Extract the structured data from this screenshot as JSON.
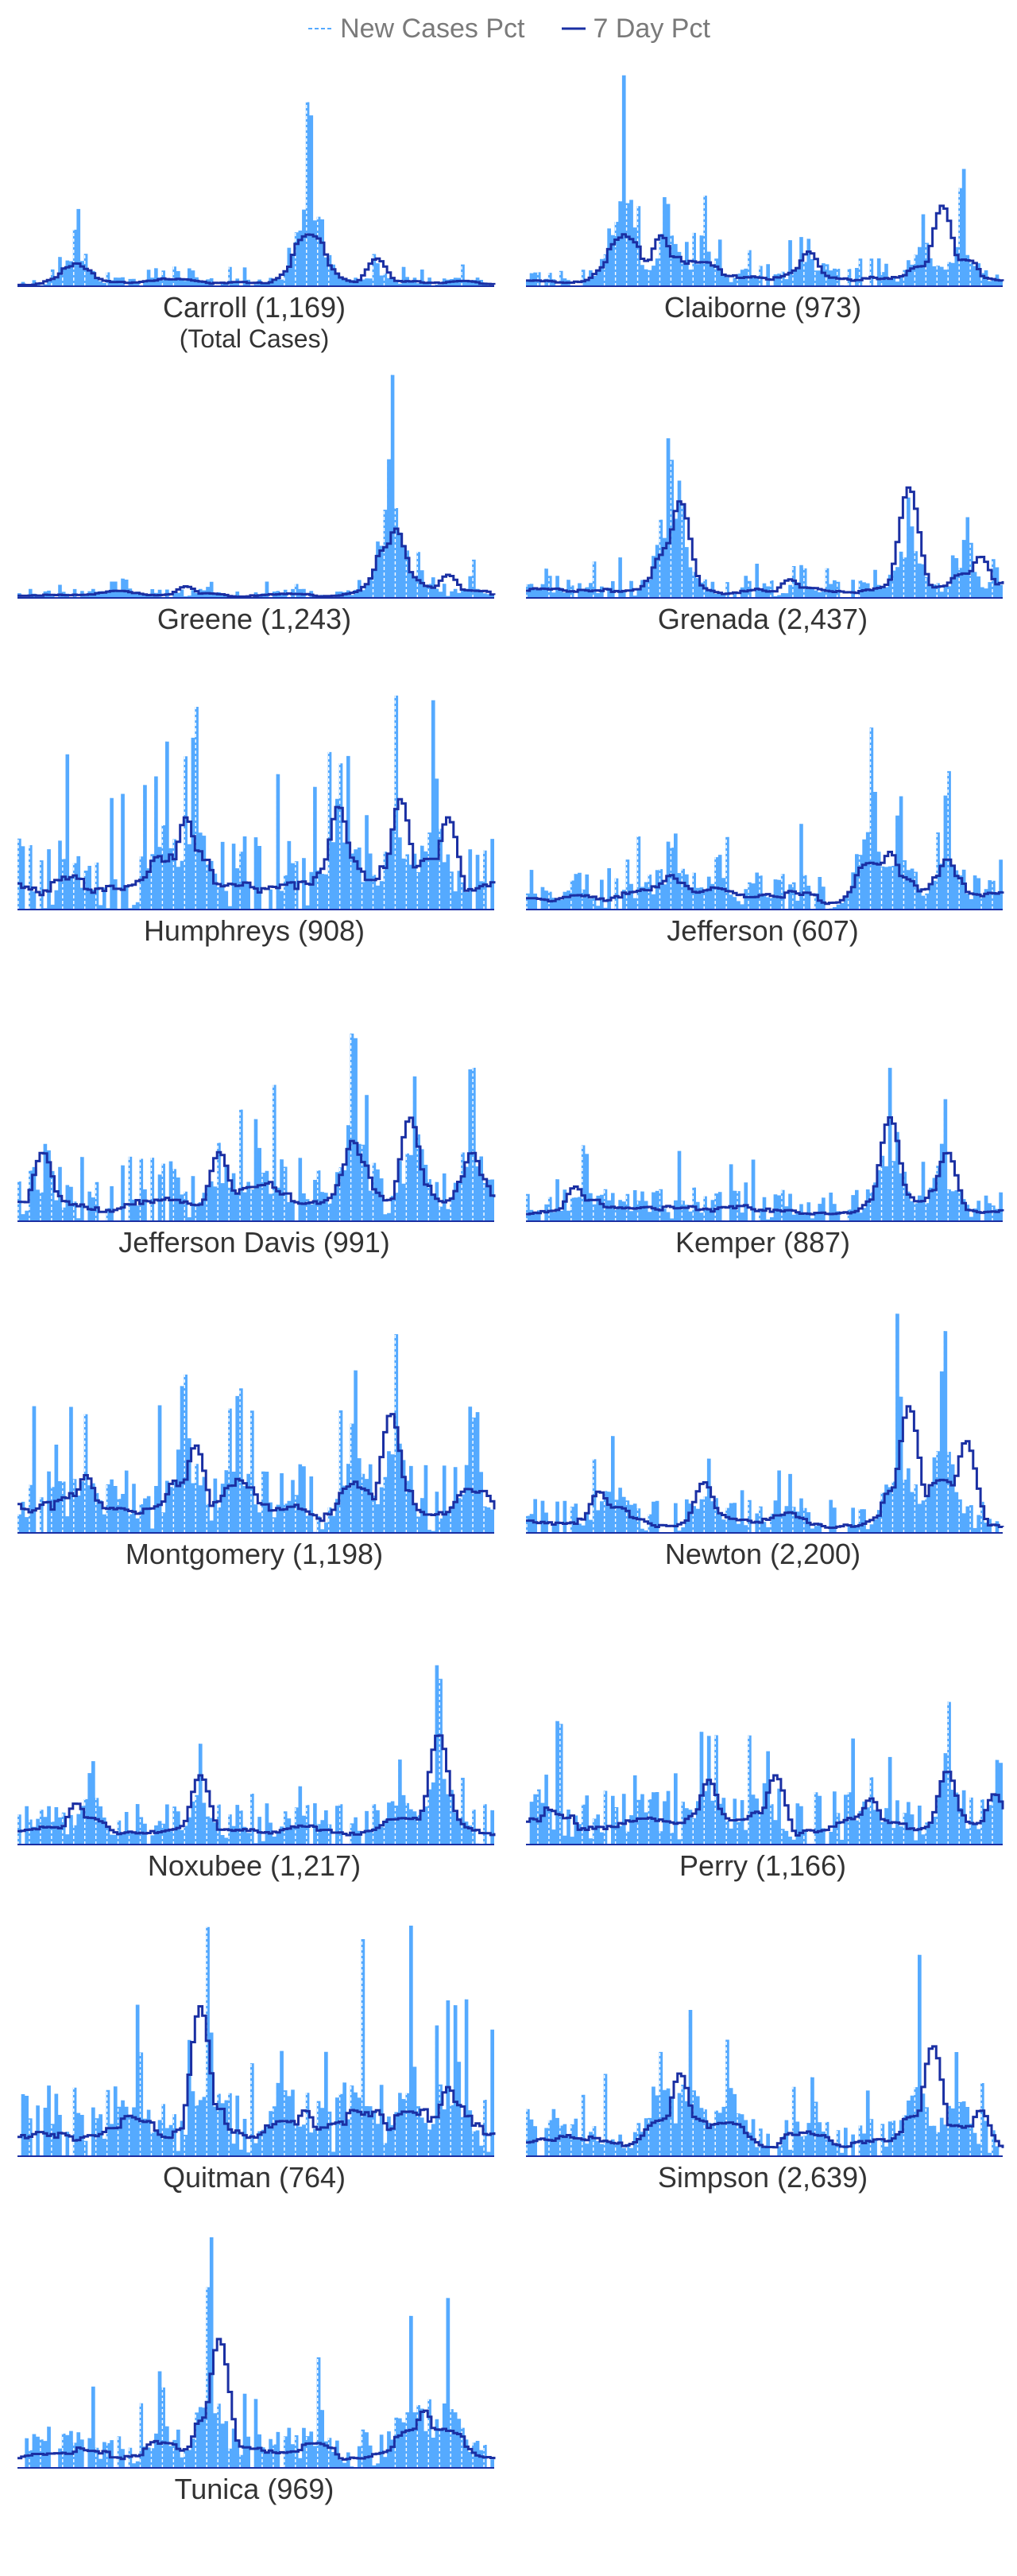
{
  "legend": {
    "new_cases_label": "New Cases Pct",
    "seven_day_label": "7 Day Pct"
  },
  "colors": {
    "area": "#55aaff",
    "new_cases_line": "#55aaff",
    "seven_day_line": "#1a2fa3",
    "title_text": "#333333",
    "legend_text": "#7a7a7a"
  },
  "chart_data": {
    "type": "area",
    "series_names": [
      "New Cases Pct",
      "7 Day Pct"
    ],
    "subtitle_first_panel": "(Total Cases)",
    "panels": [
      {
        "county": "Carroll",
        "total_cases": "1,169",
        "title": "Carroll (1,169)",
        "peaks": [
          [
            0.12,
            0.4
          ],
          [
            0.33,
            0.1
          ],
          [
            0.61,
            1.0
          ],
          [
            0.75,
            0.15
          ],
          [
            0.93,
            0.1
          ]
        ],
        "noise": 0.04,
        "seven_day": [
          [
            0.12,
            0.1
          ],
          [
            0.62,
            0.15
          ],
          [
            0.75,
            0.12
          ]
        ]
      },
      {
        "county": "Claiborne",
        "total_cases": "973",
        "title": "Claiborne (973)",
        "peaks": [
          [
            0.2,
            1.0
          ],
          [
            0.29,
            0.55
          ],
          [
            0.37,
            0.4
          ],
          [
            0.59,
            0.3
          ],
          [
            0.83,
            0.48
          ],
          [
            0.91,
            0.45
          ]
        ],
        "noise": 0.1,
        "seven_day": [
          [
            0.2,
            0.18
          ],
          [
            0.28,
            0.22
          ],
          [
            0.59,
            0.15
          ],
          [
            0.87,
            0.35
          ]
        ]
      },
      {
        "county": "Greene",
        "total_cases": "1,243",
        "title": "Greene (1,243)",
        "peaks": [
          [
            0.22,
            0.1
          ],
          [
            0.4,
            0.08
          ],
          [
            0.78,
            1.0
          ],
          [
            0.84,
            0.2
          ],
          [
            0.95,
            0.12
          ]
        ],
        "noise": 0.04,
        "seven_day": [
          [
            0.35,
            0.05
          ],
          [
            0.79,
            0.3
          ],
          [
            0.9,
            0.1
          ]
        ]
      },
      {
        "county": "Grenada",
        "total_cases": "2,437",
        "title": "Grenada (2,437)",
        "peaks": [
          [
            0.3,
            1.0
          ],
          [
            0.32,
            0.58
          ],
          [
            0.58,
            0.18
          ],
          [
            0.8,
            0.74
          ],
          [
            0.92,
            0.35
          ]
        ],
        "noise": 0.08,
        "seven_day": [
          [
            0.32,
            0.42
          ],
          [
            0.55,
            0.08
          ],
          [
            0.8,
            0.48
          ],
          [
            0.95,
            0.18
          ]
        ]
      },
      {
        "county": "Humphreys",
        "total_cases": "908",
        "title": "Humphreys (908)",
        "peaks": [
          [
            0.12,
            0.3
          ],
          [
            0.31,
            0.98
          ],
          [
            0.37,
            0.92
          ],
          [
            0.67,
            0.72
          ],
          [
            0.79,
            0.86
          ],
          [
            0.87,
            0.95
          ]
        ],
        "noise": 0.32,
        "seven_day": [
          [
            0.12,
            0.1
          ],
          [
            0.35,
            0.4
          ],
          [
            0.67,
            0.45
          ],
          [
            0.8,
            0.48
          ],
          [
            0.9,
            0.4
          ]
        ]
      },
      {
        "county": "Jefferson",
        "total_cases": "607",
        "title": "Jefferson (607)",
        "peaks": [
          [
            0.1,
            0.25
          ],
          [
            0.3,
            0.4
          ],
          [
            0.4,
            0.3
          ],
          [
            0.72,
            1.0
          ],
          [
            0.78,
            0.72
          ],
          [
            0.88,
            0.58
          ]
        ],
        "noise": 0.18,
        "seven_day": [
          [
            0.3,
            0.15
          ],
          [
            0.76,
            0.25
          ],
          [
            0.88,
            0.22
          ]
        ]
      },
      {
        "county": "Jefferson Davis",
        "total_cases": "991",
        "title": "Jefferson Davis (991)",
        "peaks": [
          [
            0.06,
            0.38
          ],
          [
            0.42,
            0.6
          ],
          [
            0.5,
            0.45
          ],
          [
            0.7,
            0.99
          ],
          [
            0.83,
            0.92
          ],
          [
            0.95,
            0.85
          ]
        ],
        "noise": 0.28,
        "seven_day": [
          [
            0.05,
            0.3
          ],
          [
            0.42,
            0.3
          ],
          [
            0.7,
            0.35
          ],
          [
            0.82,
            0.45
          ],
          [
            0.95,
            0.3
          ]
        ]
      },
      {
        "county": "Kemper",
        "total_cases": "887",
        "title": "Kemper (887)",
        "peaks": [
          [
            0.12,
            0.35
          ],
          [
            0.35,
            0.15
          ],
          [
            0.55,
            0.12
          ],
          [
            0.76,
            1.0
          ],
          [
            0.87,
            0.58
          ]
        ],
        "noise": 0.14,
        "seven_day": [
          [
            0.1,
            0.15
          ],
          [
            0.76,
            0.45
          ],
          [
            0.88,
            0.3
          ]
        ]
      },
      {
        "county": "Montgomery",
        "total_cases": "1,198",
        "title": "Montgomery (1,198)",
        "peaks": [
          [
            0.14,
            0.6
          ],
          [
            0.35,
            0.98
          ],
          [
            0.46,
            0.75
          ],
          [
            0.7,
            0.82
          ],
          [
            0.79,
            0.92
          ],
          [
            0.95,
            0.55
          ]
        ],
        "noise": 0.3,
        "seven_day": [
          [
            0.14,
            0.25
          ],
          [
            0.37,
            0.38
          ],
          [
            0.78,
            0.52
          ],
          [
            0.95,
            0.15
          ]
        ]
      },
      {
        "county": "Newton",
        "total_cases": "2,200",
        "title": "Newton (2,200)",
        "peaks": [
          [
            0.18,
            0.56
          ],
          [
            0.38,
            0.4
          ],
          [
            0.55,
            0.28
          ],
          [
            0.78,
            0.98
          ],
          [
            0.87,
            0.9
          ]
        ],
        "noise": 0.15,
        "seven_day": [
          [
            0.15,
            0.18
          ],
          [
            0.37,
            0.22
          ],
          [
            0.8,
            0.55
          ],
          [
            0.92,
            0.4
          ]
        ]
      },
      {
        "county": "Noxubee",
        "total_cases": "1,217",
        "title": "Noxubee (1,217)",
        "peaks": [
          [
            0.15,
            0.5
          ],
          [
            0.38,
            0.55
          ],
          [
            0.55,
            0.12
          ],
          [
            0.8,
            0.62
          ],
          [
            0.88,
            1.0
          ]
        ],
        "noise": 0.18,
        "seven_day": [
          [
            0.12,
            0.18
          ],
          [
            0.38,
            0.3
          ],
          [
            0.58,
            0.05
          ],
          [
            0.88,
            0.48
          ]
        ]
      },
      {
        "county": "Perry",
        "total_cases": "1,166",
        "title": "Perry (1,166)",
        "peaks": [
          [
            0.1,
            0.12
          ],
          [
            0.38,
            0.6
          ],
          [
            0.5,
            0.45
          ],
          [
            0.72,
            0.5
          ],
          [
            0.88,
            0.68
          ],
          [
            0.99,
            0.58
          ]
        ],
        "noise": 0.25,
        "seven_day": [
          [
            0.38,
            0.28
          ],
          [
            0.52,
            0.3
          ],
          [
            0.72,
            0.2
          ],
          [
            0.88,
            0.32
          ],
          [
            0.98,
            0.22
          ]
        ]
      },
      {
        "county": "Quitman",
        "total_cases": "764",
        "title": "Quitman (764)",
        "peaks": [
          [
            0.25,
            0.7
          ],
          [
            0.4,
            0.9
          ],
          [
            0.55,
            0.8
          ],
          [
            0.72,
            0.72
          ],
          [
            0.82,
            0.92
          ],
          [
            0.92,
            0.68
          ]
        ],
        "noise": 0.32,
        "seven_day": [
          [
            0.38,
            0.65
          ],
          [
            0.6,
            0.2
          ],
          [
            0.75,
            0.2
          ],
          [
            0.9,
            0.3
          ]
        ]
      },
      {
        "county": "Simpson",
        "total_cases": "2,639",
        "title": "Simpson (2,639)",
        "peaks": [
          [
            0.28,
            0.82
          ],
          [
            0.34,
            0.98
          ],
          [
            0.42,
            0.88
          ],
          [
            0.6,
            0.38
          ],
          [
            0.82,
            0.78
          ],
          [
            0.9,
            0.68
          ]
        ],
        "noise": 0.17,
        "seven_day": [
          [
            0.32,
            0.36
          ],
          [
            0.55,
            0.1
          ],
          [
            0.85,
            0.48
          ],
          [
            0.95,
            0.2
          ]
        ]
      },
      {
        "county": "Tunica",
        "total_cases": "969",
        "title": "Tunica (969)",
        "peaks": [
          [
            0.3,
            0.45
          ],
          [
            0.4,
            1.0
          ],
          [
            0.63,
            0.3
          ],
          [
            0.82,
            0.88
          ],
          [
            0.9,
            0.75
          ]
        ],
        "noise": 0.18,
        "seven_day": [
          [
            0.42,
            0.56
          ],
          [
            0.65,
            0.08
          ],
          [
            0.85,
            0.25
          ]
        ]
      }
    ]
  }
}
